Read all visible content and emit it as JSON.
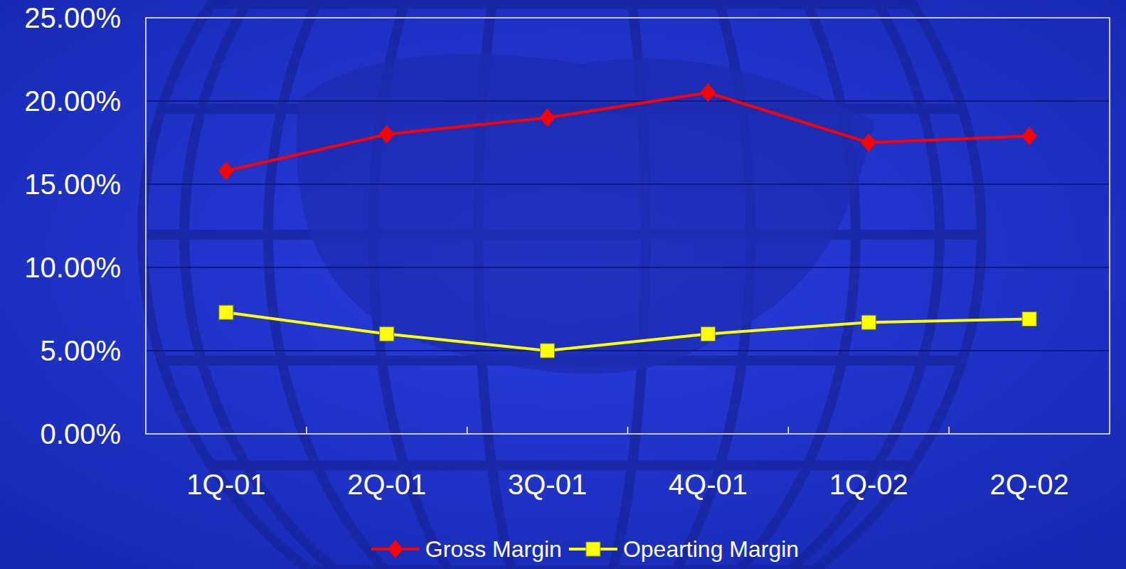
{
  "chart_data": {
    "type": "line",
    "categories": [
      "1Q-01",
      "2Q-01",
      "3Q-01",
      "4Q-01",
      "1Q-02",
      "2Q-02"
    ],
    "series": [
      {
        "name": "Gross Margin",
        "color": "#ff0000",
        "marker": "diamond",
        "values": [
          15.8,
          18.0,
          19.0,
          20.5,
          17.5,
          17.9
        ]
      },
      {
        "name": "Opearting Margin",
        "color": "#ffff00",
        "marker": "square",
        "values": [
          7.3,
          6.0,
          5.0,
          6.0,
          6.7,
          6.9
        ]
      }
    ],
    "ylim": [
      0,
      25
    ],
    "yticks": [
      {
        "value": 0,
        "label": "0.00%"
      },
      {
        "value": 5,
        "label": "5.00%"
      },
      {
        "value": 10,
        "label": "10.00%"
      },
      {
        "value": 15,
        "label": "15.00%"
      },
      {
        "value": 20,
        "label": "20.00%"
      },
      {
        "value": 25,
        "label": "25.00%"
      }
    ],
    "grid": true,
    "legend": "bottom"
  }
}
